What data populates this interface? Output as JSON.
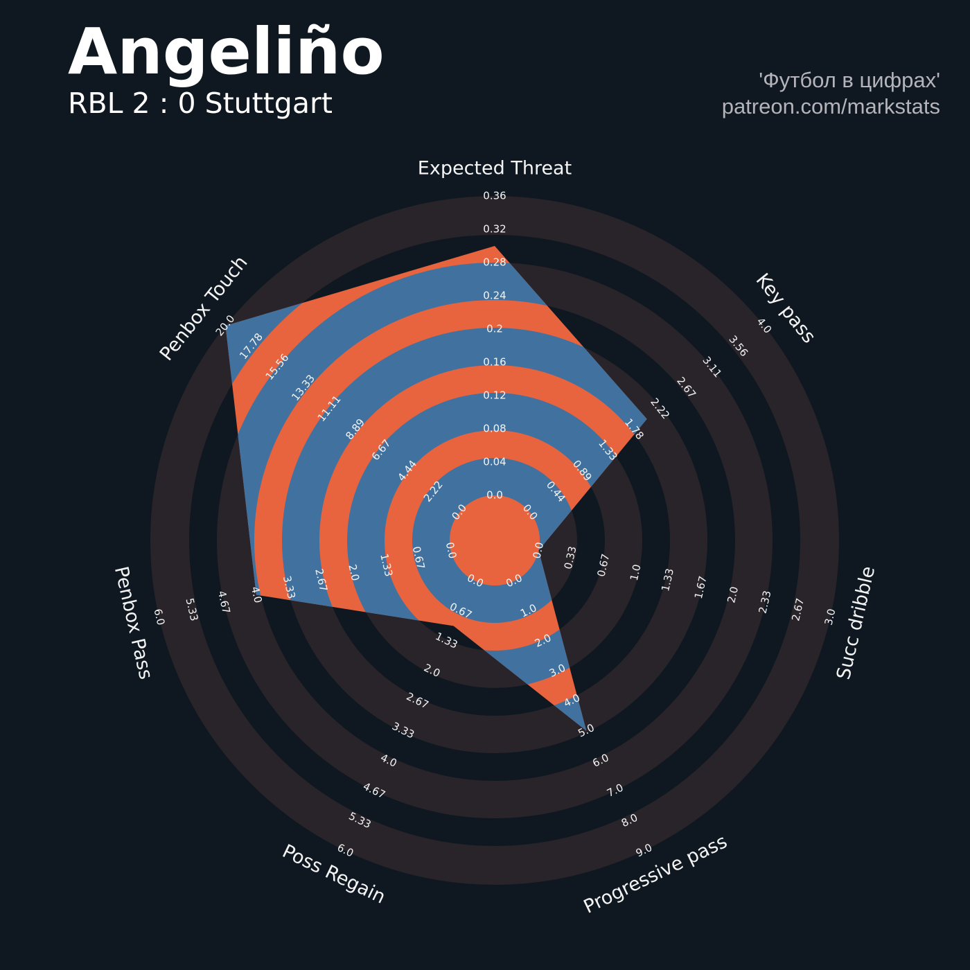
{
  "chart_data": {
    "type": "radar",
    "title": "Angeliño",
    "subtitle": "RBL 2 : 0 Stuttgart",
    "credits": [
      "'Футбол в цифрах'",
      "patreon.com/markstats"
    ],
    "categories": [
      "Expected Threat",
      "Key pass",
      "Succ dribble",
      "Progressive pass",
      "Poss Regain",
      "Penbox Pass",
      "Penbox Touch"
    ],
    "ranges": [
      [
        0,
        0.36
      ],
      [
        0,
        4
      ],
      [
        0,
        3
      ],
      [
        0,
        9
      ],
      [
        0,
        6
      ],
      [
        0,
        6
      ],
      [
        0,
        20
      ]
    ],
    "ticks": [
      [
        {
          "value": 0,
          "label": "0.0"
        },
        0.04,
        0.08,
        0.12,
        0.16,
        0.2,
        0.24,
        0.28,
        0.32,
        0.36
      ],
      [
        {
          "value": 0,
          "label": "0.0"
        },
        0.44,
        0.89,
        1.33,
        1.78,
        2.22,
        2.67,
        3.11,
        3.56,
        {
          "value": 4,
          "label": "4.0"
        }
      ],
      [
        {
          "value": 0,
          "label": "0.0"
        },
        0.33,
        0.67,
        {
          "value": 1,
          "label": "1.0"
        },
        1.33,
        1.67,
        {
          "value": 2,
          "label": "2.0"
        },
        2.33,
        2.67,
        {
          "value": 3,
          "label": "3.0"
        }
      ],
      [
        {
          "value": 0,
          "label": "0.0"
        },
        {
          "value": 1,
          "label": "1.0"
        },
        {
          "value": 2,
          "label": "2.0"
        },
        {
          "value": 3,
          "label": "3.0"
        },
        {
          "value": 4,
          "label": "4.0"
        },
        {
          "value": 5,
          "label": "5.0"
        },
        {
          "value": 6,
          "label": "6.0"
        },
        {
          "value": 7,
          "label": "7.0"
        },
        {
          "value": 8,
          "label": "8.0"
        },
        {
          "value": 9,
          "label": "9.0"
        }
      ],
      [
        {
          "value": 0,
          "label": "0.0"
        },
        0.67,
        1.33,
        {
          "value": 2,
          "label": "2.0"
        },
        2.67,
        3.33,
        {
          "value": 4,
          "label": "4.0"
        },
        4.67,
        5.33,
        {
          "value": 6,
          "label": "6.0"
        }
      ],
      [
        {
          "value": 0,
          "label": "0.0"
        },
        0.67,
        1.33,
        {
          "value": 2,
          "label": "2.0"
        },
        2.67,
        3.33,
        {
          "value": 4,
          "label": "4.0"
        },
        4.67,
        5.33,
        {
          "value": 6,
          "label": "6.0"
        }
      ],
      [
        {
          "value": 0,
          "label": "0.0"
        },
        2.22,
        4.44,
        6.67,
        8.89,
        11.11,
        13.33,
        15.56,
        17.78,
        {
          "value": 20,
          "label": "20.0"
        }
      ]
    ],
    "series": [
      {
        "values": [
          0.3,
          2,
          0,
          5,
          1,
          4,
          20
        ],
        "color": "#e8643f",
        "band_color": "#41729f"
      }
    ],
    "ring_color": "#28242a",
    "background": "#0f1820"
  }
}
